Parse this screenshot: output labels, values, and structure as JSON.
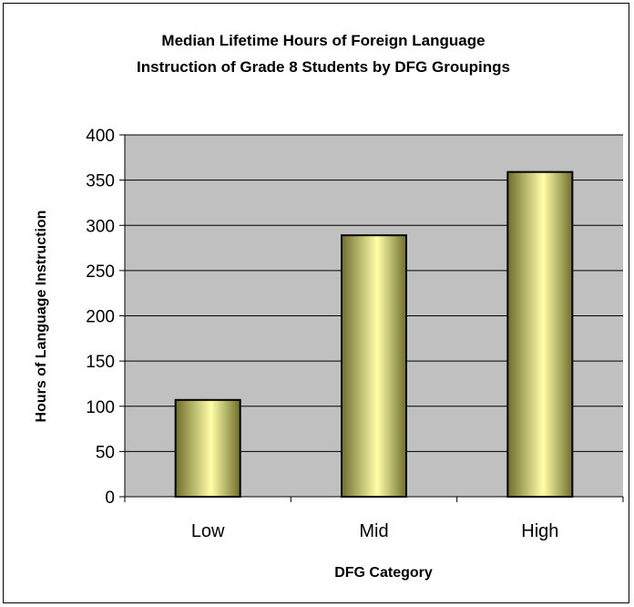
{
  "chart_data": {
    "type": "bar",
    "title_lines": [
      "Median Lifetime Hours of Foreign Language",
      "Instruction of Grade 8 Students by DFG Groupings"
    ],
    "xlabel": "DFG Category",
    "ylabel": "Hours of Language Instruction",
    "categories": [
      "Low",
      "Mid",
      "High"
    ],
    "values": [
      107,
      289,
      359
    ],
    "ylim": [
      0,
      400
    ],
    "yticks": [
      0,
      50,
      100,
      150,
      200,
      250,
      300,
      350,
      400
    ],
    "grid": true,
    "legend": "none",
    "colors": {
      "plot_background": "#C0C0C0",
      "bar_light": "#FFFFA8",
      "bar_dark": "#6E6E2E",
      "bar_outline": "#000000",
      "gridline": "#000000"
    }
  }
}
